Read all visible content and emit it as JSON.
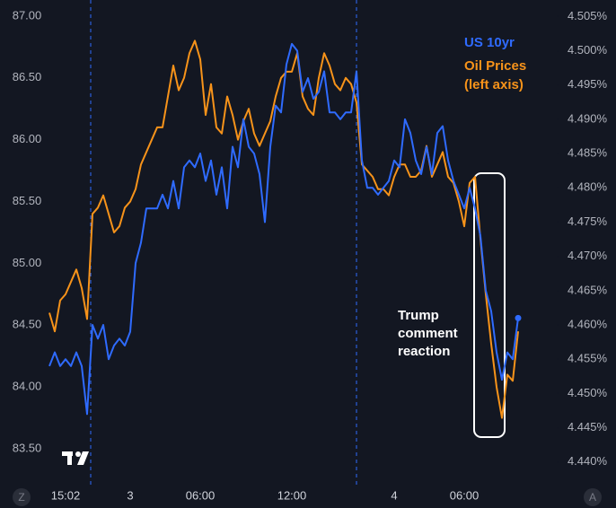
{
  "chart_data": {
    "type": "line",
    "categories": [
      null,
      null,
      null,
      "15:02",
      null,
      null,
      null,
      null,
      null,
      null,
      null,
      null,
      null,
      null,
      null,
      "3",
      null,
      null,
      null,
      null,
      null,
      null,
      null,
      null,
      null,
      null,
      null,
      null,
      "06:00",
      null,
      null,
      null,
      null,
      null,
      null,
      null,
      null,
      null,
      null,
      null,
      null,
      null,
      null,
      null,
      null,
      "12:00",
      null,
      null,
      null,
      null,
      null,
      null,
      null,
      null,
      null,
      null,
      null,
      null,
      null,
      null,
      null,
      null,
      null,
      null,
      "4",
      null,
      null,
      null,
      null,
      null,
      null,
      null,
      null,
      null,
      null,
      null,
      null,
      "06:00",
      null,
      null,
      null,
      null,
      null,
      null,
      null,
      null,
      null,
      null
    ],
    "series": [
      {
        "name": "US 10yr",
        "color": "#2f6bff",
        "axis": "y2",
        "values": [
          4.454,
          4.456,
          4.454,
          4.455,
          4.454,
          4.456,
          4.454,
          4.447,
          4.46,
          4.458,
          4.46,
          4.455,
          4.457,
          4.458,
          4.457,
          4.459,
          4.469,
          4.472,
          4.477,
          4.477,
          4.477,
          4.479,
          4.477,
          4.481,
          4.477,
          4.483,
          4.484,
          4.483,
          4.485,
          4.481,
          4.484,
          4.479,
          4.483,
          4.477,
          4.486,
          4.483,
          4.49,
          4.486,
          4.485,
          4.482,
          4.475,
          4.486,
          4.492,
          4.491,
          4.498,
          4.501,
          4.5,
          4.494,
          4.496,
          4.493,
          4.494,
          4.497,
          4.491,
          4.491,
          4.49,
          4.491,
          4.491,
          4.497,
          4.484,
          4.48,
          4.48,
          4.479,
          4.48,
          4.481,
          4.484,
          4.483,
          4.49,
          4.488,
          4.484,
          4.482,
          4.486,
          4.482,
          4.488,
          4.489,
          4.484,
          4.481,
          4.479,
          4.477,
          4.48,
          4.477,
          4.473,
          4.465,
          4.462,
          4.456,
          4.452,
          4.456,
          4.455,
          4.461
        ]
      },
      {
        "name": "Oil Prices (left axis)",
        "color": "#f7931a",
        "values": [
          84.6,
          84.45,
          84.7,
          84.75,
          84.85,
          84.95,
          84.8,
          84.55,
          85.4,
          85.45,
          85.55,
          85.4,
          85.25,
          85.3,
          85.45,
          85.5,
          85.6,
          85.8,
          85.9,
          86.0,
          86.1,
          86.1,
          86.35,
          86.6,
          86.4,
          86.5,
          86.7,
          86.8,
          86.65,
          86.2,
          86.45,
          86.1,
          86.05,
          86.35,
          86.2,
          86.0,
          86.15,
          86.25,
          86.05,
          85.95,
          86.05,
          86.15,
          86.35,
          86.5,
          86.55,
          86.55,
          86.7,
          86.35,
          86.25,
          86.2,
          86.5,
          86.7,
          86.6,
          86.45,
          86.4,
          86.5,
          86.45,
          86.3,
          85.8,
          85.75,
          85.7,
          85.6,
          85.6,
          85.55,
          85.7,
          85.8,
          85.8,
          85.7,
          85.7,
          85.75,
          85.95,
          85.7,
          85.8,
          85.9,
          85.7,
          85.65,
          85.5,
          85.3,
          85.65,
          85.7,
          85.2,
          84.75,
          84.35,
          84.0,
          83.75,
          84.1,
          84.05,
          84.45
        ]
      }
    ],
    "ylim": [
      83.21,
      87.13
    ],
    "yticks": [
      {
        "value": 83.5,
        "label": "83.50"
      },
      {
        "value": 84,
        "label": "84.00"
      },
      {
        "value": 84.5,
        "label": "84.50"
      },
      {
        "value": 85,
        "label": "85.00"
      },
      {
        "value": 85.5,
        "label": "85.50"
      },
      {
        "value": 86,
        "label": "86.00"
      },
      {
        "value": 86.5,
        "label": "86.50"
      },
      {
        "value": 87,
        "label": "87.00"
      }
    ],
    "y2lim": [
      4.4367,
      4.5074
    ],
    "y2ticks": [
      {
        "value": 4.44,
        "label": "4.440%"
      },
      {
        "value": 4.445,
        "label": "4.445%"
      },
      {
        "value": 4.45,
        "label": "4.450%"
      },
      {
        "value": 4.455,
        "label": "4.455%"
      },
      {
        "value": 4.46,
        "label": "4.460%"
      },
      {
        "value": 4.465,
        "label": "4.465%"
      },
      {
        "value": 4.47,
        "label": "4.470%"
      },
      {
        "value": 4.475,
        "label": "4.475%"
      },
      {
        "value": 4.48,
        "label": "4.480%"
      },
      {
        "value": 4.485,
        "label": "4.485%"
      },
      {
        "value": 4.49,
        "label": "4.490%"
      },
      {
        "value": 4.495,
        "label": "4.495%"
      },
      {
        "value": 4.5,
        "label": "4.500%"
      },
      {
        "value": 4.505,
        "label": "4.505%"
      }
    ],
    "annotation": "Trump comment reaction",
    "grid": false
  },
  "buttons": [
    "Z",
    "A"
  ]
}
